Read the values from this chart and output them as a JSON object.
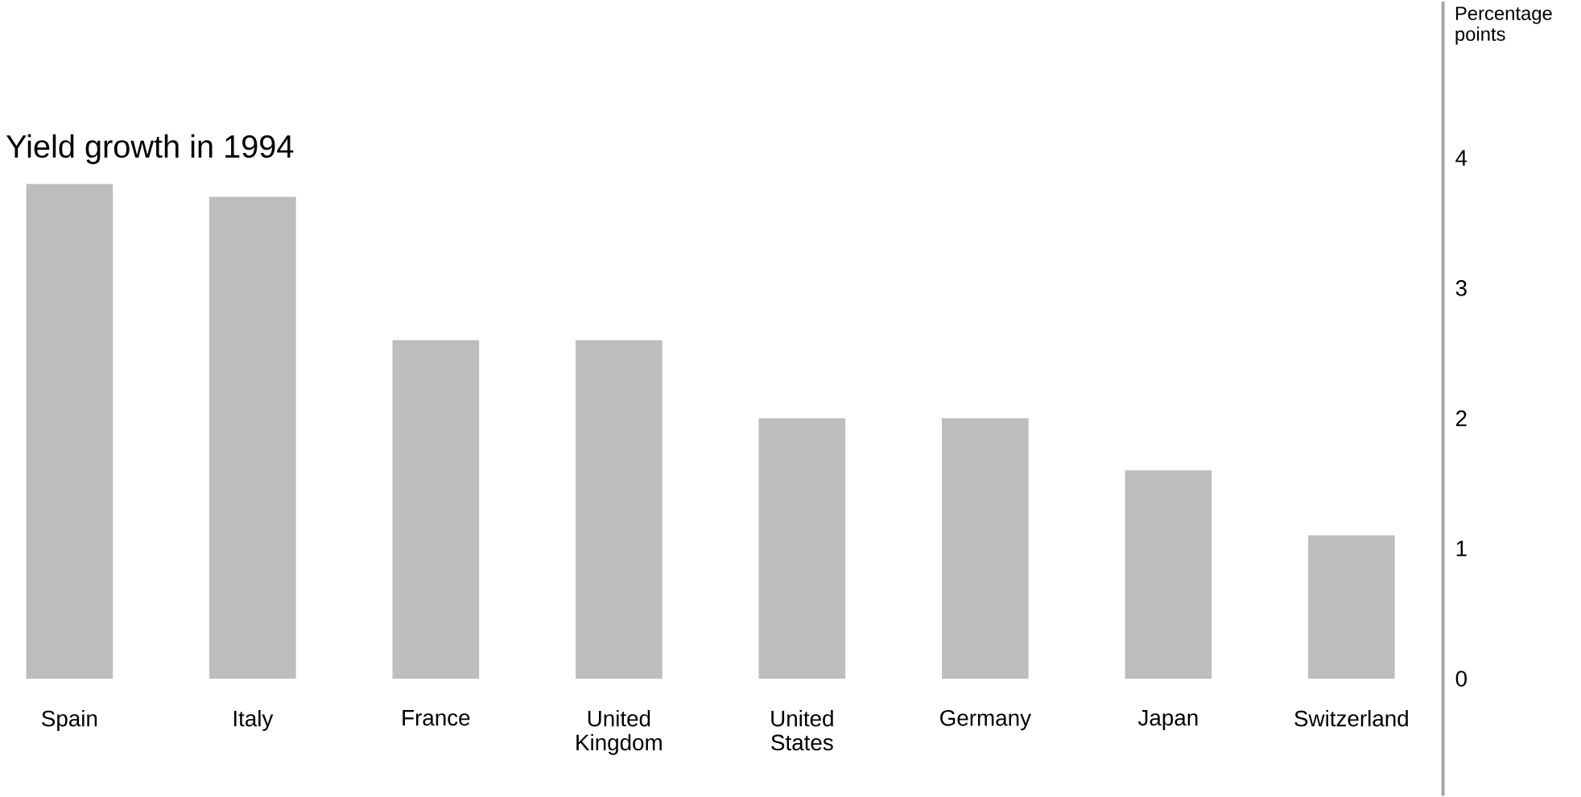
{
  "chart_data": {
    "type": "bar",
    "title": "Yield growth in 1994",
    "ylabel": "Percentage points",
    "categories": [
      "Spain",
      "Italy",
      "France",
      "United Kingdom",
      "United States",
      "Germany",
      "Japan",
      "Switzerland"
    ],
    "values": [
      3.8,
      3.7,
      2.6,
      2.6,
      2.0,
      2.0,
      1.6,
      1.1
    ],
    "color": "#bdbdbd",
    "ylim": [
      -0.9,
      5.2
    ],
    "yticks": [
      0,
      1,
      2,
      3,
      4
    ]
  }
}
